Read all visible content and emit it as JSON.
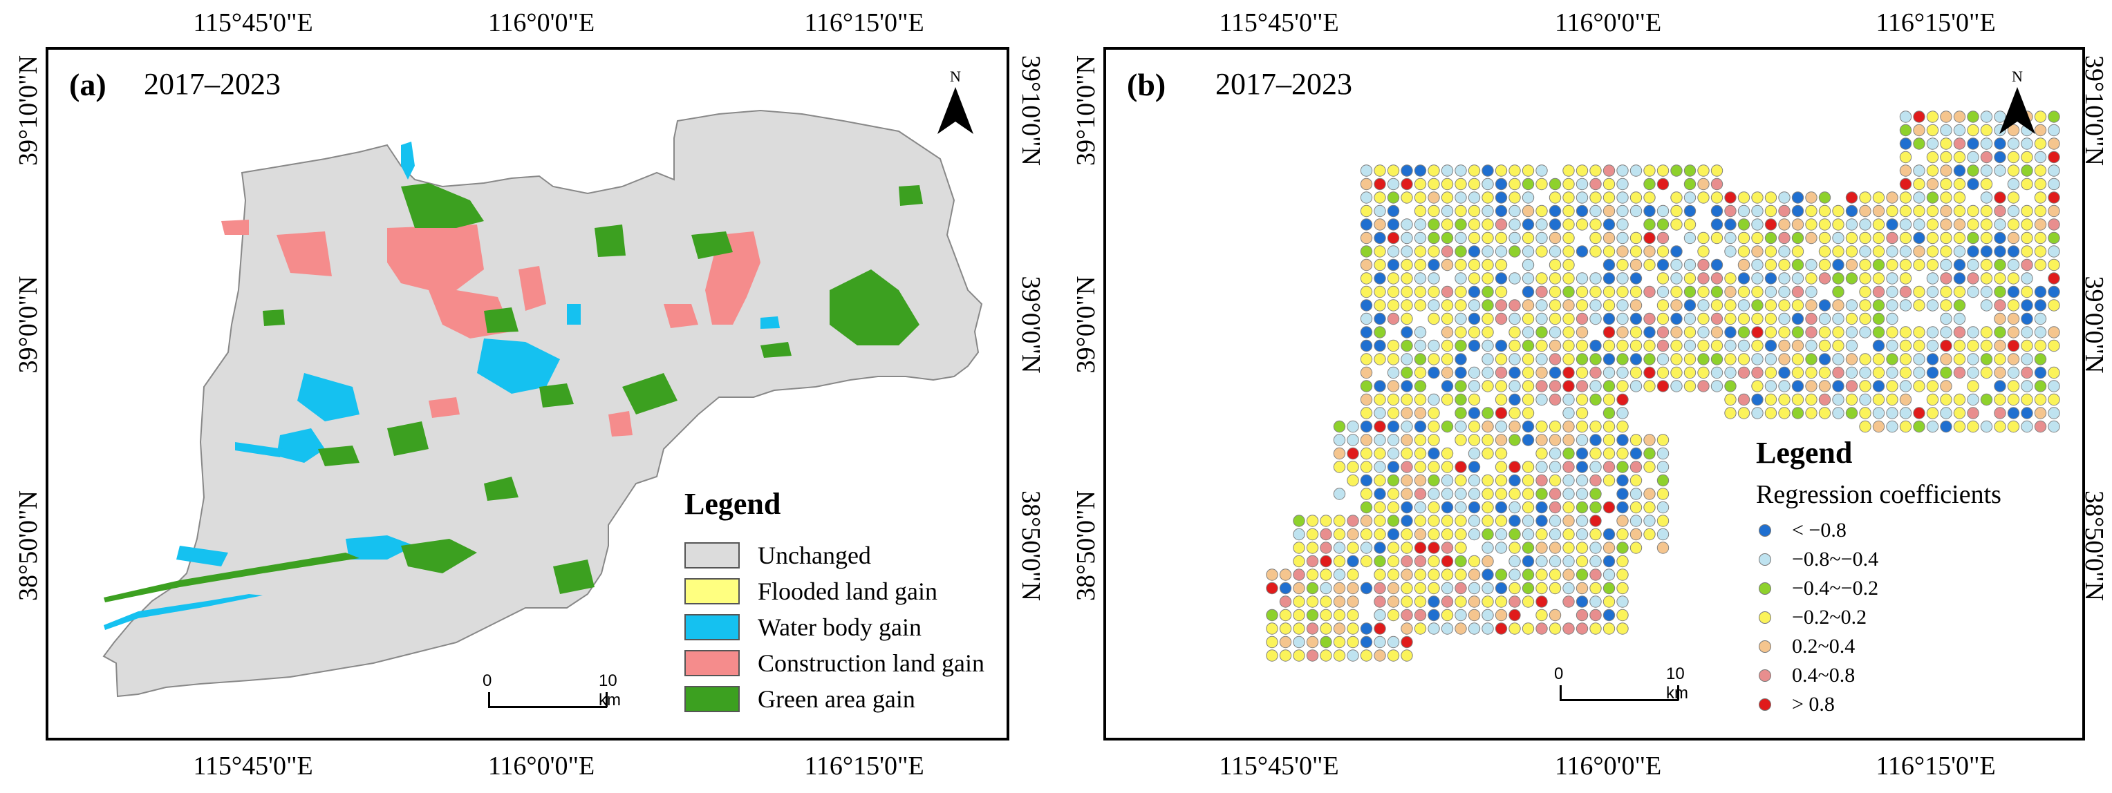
{
  "panels": [
    {
      "label": "(a)",
      "period": "2017–2023",
      "north_label": "N",
      "lon_ticks": [
        "115°45'0\"E",
        "116°0'0\"E",
        "116°15'0\"E"
      ],
      "lat_ticks": [
        "39°10'0\"N",
        "39°0'0\"N",
        "38°50'0\"N"
      ],
      "scale": {
        "start": "0",
        "end": "10 km"
      },
      "legend": {
        "title": "Legend",
        "items": [
          {
            "label": "Unchanged",
            "color": "#dcdcdc"
          },
          {
            "label": "Flooded land gain",
            "color": "#ffff80"
          },
          {
            "label": "Water body gain",
            "color": "#15c1f0"
          },
          {
            "label": "Construction land gain",
            "color": "#f58c8c"
          },
          {
            "label": "Green area gain",
            "color": "#3ca020"
          }
        ]
      }
    },
    {
      "label": "(b)",
      "period": "2017–2023",
      "north_label": "N",
      "lon_ticks": [
        "115°45'0\"E",
        "116°0'0\"E",
        "116°15'0\"E"
      ],
      "lat_ticks": [
        "39°10'0\"N",
        "39°0'0\"N",
        "38°50'0\"N"
      ],
      "scale": {
        "start": "0",
        "end": "10 km"
      },
      "legend": {
        "title": "Legend",
        "subtitle": "Regression coefficients",
        "items": [
          {
            "label": "< −0.8",
            "color": "#1f6fd0"
          },
          {
            "label": "−0.8~−0.4",
            "color": "#bfe3f0"
          },
          {
            "label": "−0.4~−0.2",
            "color": "#8ed12c"
          },
          {
            "label": "−0.2~0.2",
            "color": "#fbf35a"
          },
          {
            "label": "0.2~0.4",
            "color": "#f5c58e"
          },
          {
            "label": "0.4~0.8",
            "color": "#e88e8e"
          },
          {
            "label": "> 0.8",
            "color": "#e01b1b"
          }
        ]
      }
    }
  ]
}
